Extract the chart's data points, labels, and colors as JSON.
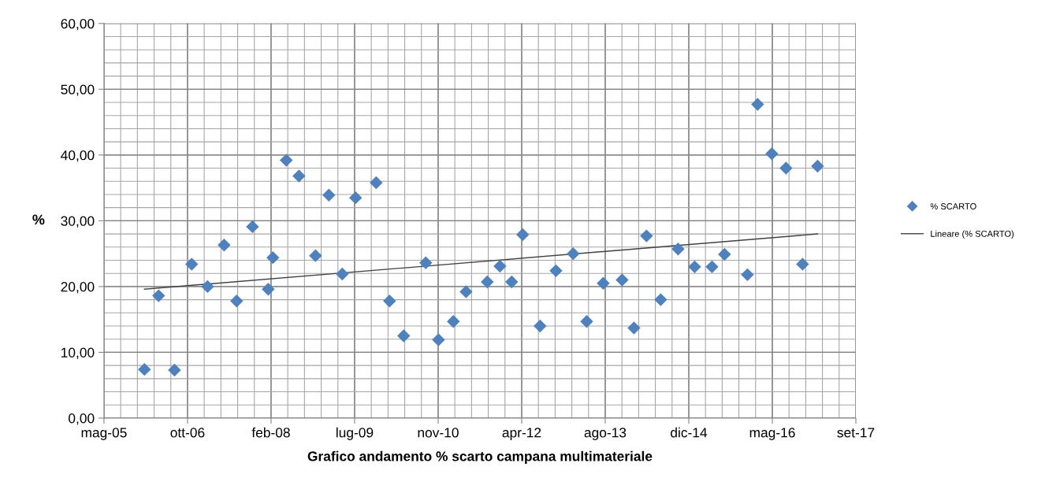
{
  "chart_data": {
    "type": "scatter",
    "xlabel": "Grafico andamento % scarto campana multimateriale",
    "ylabel": "%",
    "xlim": [
      "2005-05-28",
      "2017-09-22"
    ],
    "xticks": [
      {
        "value": "2005-05-28",
        "label": "mag-05"
      },
      {
        "value": "2006-10-10",
        "label": "ott-06"
      },
      {
        "value": "2008-02-22",
        "label": "feb-08"
      },
      {
        "value": "2009-07-06",
        "label": "lug-09"
      },
      {
        "value": "2010-11-18",
        "label": "nov-10"
      },
      {
        "value": "2012-04-01",
        "label": "apr-12"
      },
      {
        "value": "2013-08-14",
        "label": "ago-13"
      },
      {
        "value": "2014-12-27",
        "label": "dic-14"
      },
      {
        "value": "2016-05-10",
        "label": "mag-16"
      },
      {
        "value": "2017-09-22",
        "label": "set-17"
      }
    ],
    "ylim": [
      0,
      60
    ],
    "yticks": [
      {
        "value": 0,
        "label": "0,00"
      },
      {
        "value": 10,
        "label": "10,00"
      },
      {
        "value": 20,
        "label": "20,00"
      },
      {
        "value": 30,
        "label": "30,00"
      },
      {
        "value": 40,
        "label": "40,00"
      },
      {
        "value": 50,
        "label": "50,00"
      },
      {
        "value": 60,
        "label": "60,00"
      }
    ],
    "grid": true,
    "legend": "right",
    "series": [
      {
        "name": "% SCARTO",
        "color": "#4f81bd",
        "marker": "diamond",
        "x": [
          "2006-01-25",
          "2006-04-20",
          "2006-07-24",
          "2006-11-04",
          "2007-02-07",
          "2007-05-17",
          "2007-07-31",
          "2007-11-03",
          "2008-02-05",
          "2008-03-04",
          "2008-05-23",
          "2008-08-07",
          "2008-11-14",
          "2009-02-02",
          "2009-04-23",
          "2009-07-12",
          "2009-11-12",
          "2010-01-31",
          "2010-04-26",
          "2010-09-05",
          "2010-11-20",
          "2011-02-17",
          "2011-05-04",
          "2011-09-08",
          "2011-11-23",
          "2012-02-01",
          "2012-04-07",
          "2012-07-20",
          "2012-10-23",
          "2013-02-03",
          "2013-04-25",
          "2013-08-02",
          "2013-11-23",
          "2014-02-02",
          "2014-04-18",
          "2014-07-12",
          "2014-10-24",
          "2015-01-31",
          "2015-05-15",
          "2015-07-29",
          "2015-12-13",
          "2016-02-12",
          "2016-05-07",
          "2016-07-31",
          "2016-11-07",
          "2017-02-05"
        ],
        "values": [
          7.4,
          18.6,
          7.3,
          23.4,
          20.0,
          26.3,
          17.8,
          29.1,
          19.6,
          24.4,
          39.2,
          36.8,
          24.7,
          33.9,
          21.9,
          33.5,
          35.8,
          17.8,
          12.5,
          23.6,
          11.9,
          14.7,
          19.2,
          20.7,
          23.1,
          20.7,
          27.9,
          14.0,
          22.4,
          25.0,
          14.7,
          20.5,
          21.0,
          13.7,
          27.7,
          18.0,
          25.7,
          23.0,
          23.0,
          24.9,
          21.8,
          47.7,
          40.2,
          38.0,
          23.4,
          38.3
        ]
      },
      {
        "name": "Lineare (% SCARTO)",
        "type": "line",
        "color": "#404040",
        "line_style": "solid",
        "x": [
          "2006-01-25",
          "2017-02-05"
        ],
        "values": [
          19.6,
          28.0
        ]
      }
    ]
  }
}
